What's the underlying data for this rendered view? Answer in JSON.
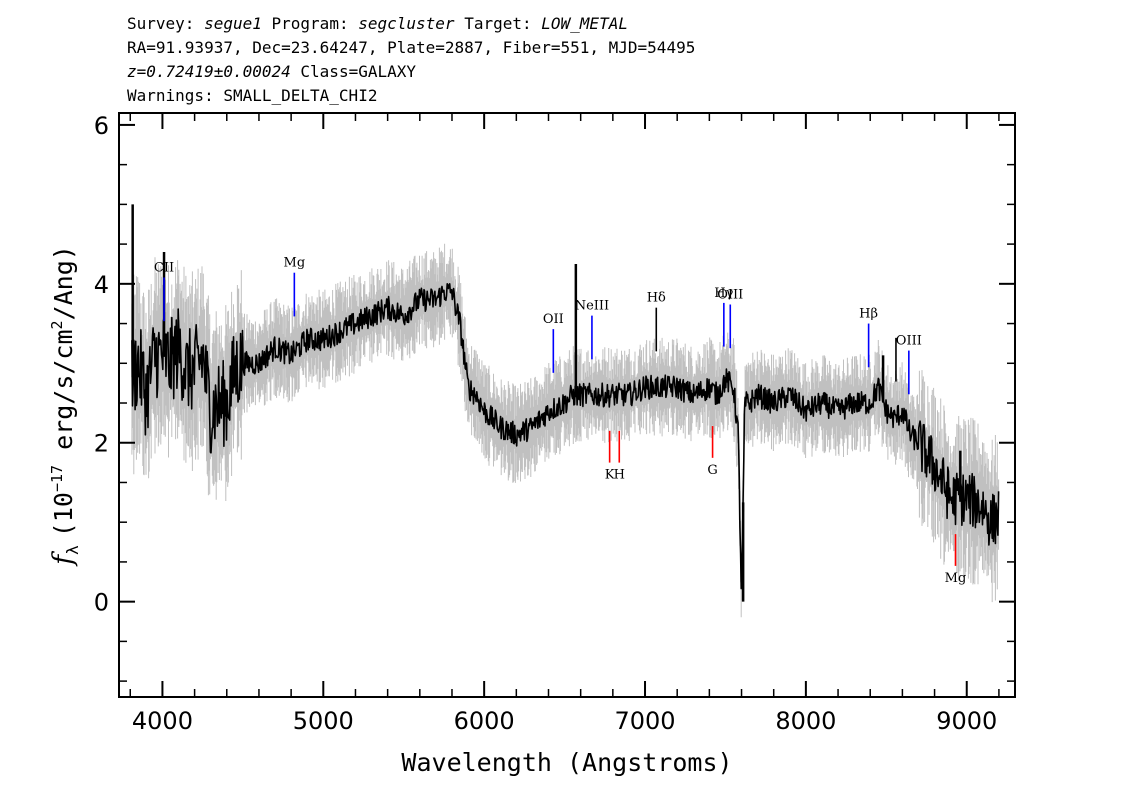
{
  "header": {
    "survey_label": "Survey:",
    "survey": "segue1",
    "program_label": "Program:",
    "program": "segcluster",
    "target_label": "Target:",
    "target": "LOW_METAL",
    "line2": "RA=91.93937, Dec=23.64247, Plate=2887, Fiber=551, MJD=54495",
    "redshift": "z=0.72419±0.00024",
    "class": "Class=GALAXY",
    "warnings": "Warnings: SMALL_DELTA_CHI2"
  },
  "chart_data": {
    "type": "line",
    "title": "",
    "xlabel": "Wavelength (Angstroms)",
    "ylabel": "f_λ (10^-17 erg/s/cm^2/Ang)",
    "ylabel_parts": {
      "f": "f",
      "lambda": "λ",
      "pre": "(10",
      "exp": "−17",
      "mid": " erg/s/cm",
      "exp2": "2",
      "post": "/Ang)"
    },
    "xlim": [
      3730,
      9300
    ],
    "ylim": [
      -1.2,
      6.15
    ],
    "xticks": [
      4000,
      5000,
      6000,
      7000,
      8000,
      9000
    ],
    "xtick_labels": [
      "4000",
      "5000",
      "6000",
      "7000",
      "8000",
      "9000"
    ],
    "yticks": [
      0,
      2,
      4,
      6
    ],
    "ytick_labels": [
      "0",
      "2",
      "4",
      "6"
    ],
    "grid": false,
    "series": [
      {
        "role": "flux",
        "color": "#000000",
        "x": [
          3810,
          3850,
          3900,
          3950,
          4000,
          4050,
          4100,
          4150,
          4200,
          4250,
          4300,
          4350,
          4400,
          4450,
          4500,
          4600,
          4700,
          4800,
          4900,
          5000,
          5100,
          5200,
          5300,
          5400,
          5500,
          5600,
          5700,
          5750,
          5800,
          5850,
          5900,
          5950,
          6000,
          6100,
          6200,
          6300,
          6400,
          6500,
          6550,
          6600,
          6700,
          6800,
          6900,
          7000,
          7100,
          7200,
          7300,
          7400,
          7450,
          7500,
          7550,
          7580,
          7600,
          7620,
          7650,
          7700,
          7800,
          7900,
          8000,
          8100,
          8200,
          8300,
          8400,
          8450,
          8500,
          8550,
          8600,
          8650,
          8700,
          8800,
          8900,
          9000,
          9100,
          9150,
          9200
        ],
        "y": [
          2.8,
          3.0,
          2.6,
          3.1,
          3.1,
          3.0,
          3.2,
          2.9,
          2.9,
          3.1,
          2.4,
          2.5,
          2.5,
          2.9,
          3.0,
          3.0,
          3.2,
          3.1,
          3.3,
          3.3,
          3.4,
          3.5,
          3.6,
          3.7,
          3.6,
          3.8,
          3.8,
          3.9,
          3.9,
          3.5,
          2.7,
          2.6,
          2.4,
          2.2,
          2.1,
          2.2,
          2.4,
          2.5,
          2.6,
          2.6,
          2.6,
          2.6,
          2.6,
          2.7,
          2.7,
          2.7,
          2.6,
          2.7,
          2.6,
          2.8,
          2.7,
          2.1,
          0.0,
          2.5,
          2.5,
          2.6,
          2.5,
          2.6,
          2.4,
          2.5,
          2.4,
          2.5,
          2.5,
          2.7,
          2.4,
          2.3,
          2.4,
          2.1,
          2.0,
          1.7,
          1.3,
          1.3,
          1.2,
          1.0,
          1.1
        ]
      },
      {
        "role": "error_envelope",
        "color": "#c0c0c0"
      }
    ],
    "spikes": [
      {
        "x": 3815,
        "y": 5.0
      },
      {
        "x": 4010,
        "y": 4.4
      },
      {
        "x": 6570,
        "y": 4.25
      },
      {
        "x": 7610,
        "y": 0.0
      },
      {
        "x": 8480,
        "y": 3.1
      },
      {
        "x": 8960,
        "y": 1.9
      }
    ],
    "emission_lines": [
      {
        "label": "CII",
        "x": 4010,
        "color": "#0000ff"
      },
      {
        "label": "Mg",
        "x": 4820,
        "color": "#0000ff"
      },
      {
        "label": "OII",
        "x": 6430,
        "color": "#0000ff"
      },
      {
        "label": "NeIII",
        "x": 6670,
        "color": "#0000ff"
      },
      {
        "label": "Hδ",
        "x": 7070,
        "color": "#000000"
      },
      {
        "label": "Hγ",
        "x": 7490,
        "color": "#0000ff"
      },
      {
        "label": "OIII",
        "x": 7530,
        "color": "#0000ff"
      },
      {
        "label": "Hβ",
        "x": 8390,
        "color": "#0000ff"
      },
      {
        "label": "",
        "x": 8560,
        "color": "#000000"
      },
      {
        "label": "OIII",
        "x": 8640,
        "color": "#0000ff"
      }
    ],
    "absorption_lines": [
      {
        "label": "K",
        "x": 6780,
        "color": "#ff0000"
      },
      {
        "label": "H",
        "x": 6840,
        "color": "#ff0000"
      },
      {
        "label": "G",
        "x": 7420,
        "color": "#ff0000"
      },
      {
        "label": "Mg",
        "x": 8930,
        "color": "#ff0000"
      }
    ]
  }
}
